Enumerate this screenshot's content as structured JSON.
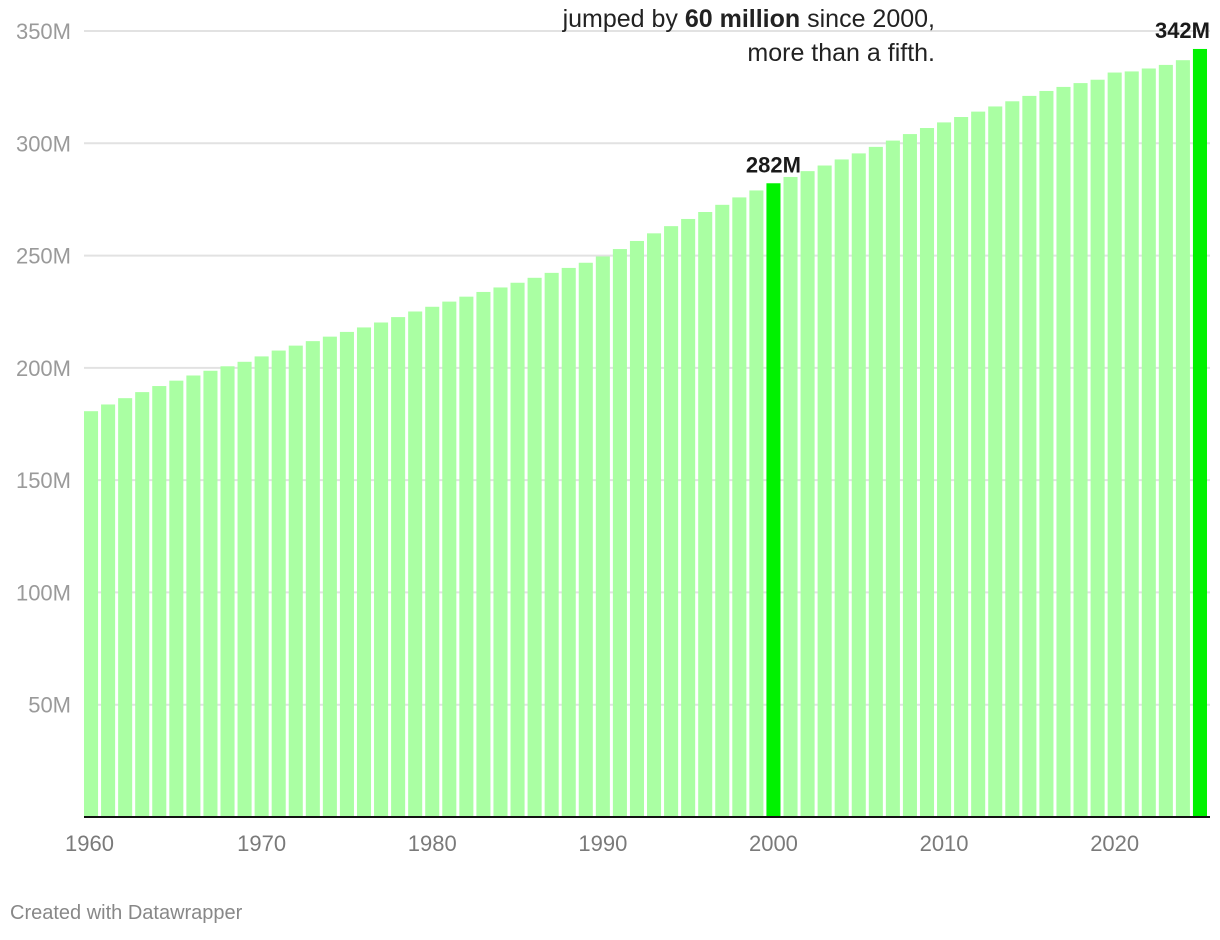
{
  "annotation": {
    "line1_pre": "jumped by ",
    "line1_bold": "60 million",
    "line1_post": " since 2000,",
    "line2": "more than a fifth."
  },
  "credit": "Created with Datawrapper",
  "colors": {
    "bar": "#aaffa3",
    "highlight": "#00f200",
    "grid": "#e2e2e2",
    "baseline": "#111111"
  },
  "chart_data": {
    "type": "bar",
    "title": "",
    "xlabel": "",
    "ylabel": "",
    "ylim": [
      0,
      350000000
    ],
    "y_ticks": [
      {
        "value": 50000000,
        "label": "50M"
      },
      {
        "value": 100000000,
        "label": "100M"
      },
      {
        "value": 150000000,
        "label": "150M"
      },
      {
        "value": 200000000,
        "label": "200M"
      },
      {
        "value": 250000000,
        "label": "250M"
      },
      {
        "value": 300000000,
        "label": "300M"
      },
      {
        "value": 350000000,
        "label": "350M"
      }
    ],
    "x_ticks": [
      "1960",
      "1970",
      "1980",
      "1990",
      "2000",
      "2010",
      "2020"
    ],
    "highlighted": [
      {
        "year": 2000,
        "label": "282M"
      },
      {
        "year": 2025,
        "label": "342M"
      }
    ],
    "categories": [
      1960,
      1961,
      1962,
      1963,
      1964,
      1965,
      1966,
      1967,
      1968,
      1969,
      1970,
      1971,
      1972,
      1973,
      1974,
      1975,
      1976,
      1977,
      1978,
      1979,
      1980,
      1981,
      1982,
      1983,
      1984,
      1985,
      1986,
      1987,
      1988,
      1989,
      1990,
      1991,
      1992,
      1993,
      1994,
      1995,
      1996,
      1997,
      1998,
      1999,
      2000,
      2001,
      2002,
      2003,
      2004,
      2005,
      2006,
      2007,
      2008,
      2009,
      2010,
      2011,
      2012,
      2013,
      2014,
      2015,
      2016,
      2017,
      2018,
      2019,
      2020,
      2021,
      2022,
      2023,
      2024,
      2025
    ],
    "values": [
      180700000,
      183700000,
      186500000,
      189200000,
      191900000,
      194300000,
      196600000,
      198700000,
      200700000,
      202700000,
      205100000,
      207700000,
      209900000,
      211900000,
      213900000,
      216000000,
      218000000,
      220200000,
      222600000,
      225100000,
      227200000,
      229500000,
      231700000,
      233800000,
      235800000,
      237900000,
      240100000,
      242300000,
      244500000,
      246800000,
      249600000,
      252900000,
      256500000,
      259900000,
      263100000,
      266300000,
      269400000,
      272600000,
      275900000,
      279000000,
      282200000,
      285000000,
      287600000,
      290100000,
      292800000,
      295500000,
      298400000,
      301200000,
      304100000,
      306800000,
      309300000,
      311700000,
      314100000,
      316400000,
      318700000,
      321100000,
      323300000,
      325100000,
      326800000,
      328300000,
      331500000,
      332000000,
      333300000,
      334900000,
      337000000,
      342000000
    ]
  }
}
